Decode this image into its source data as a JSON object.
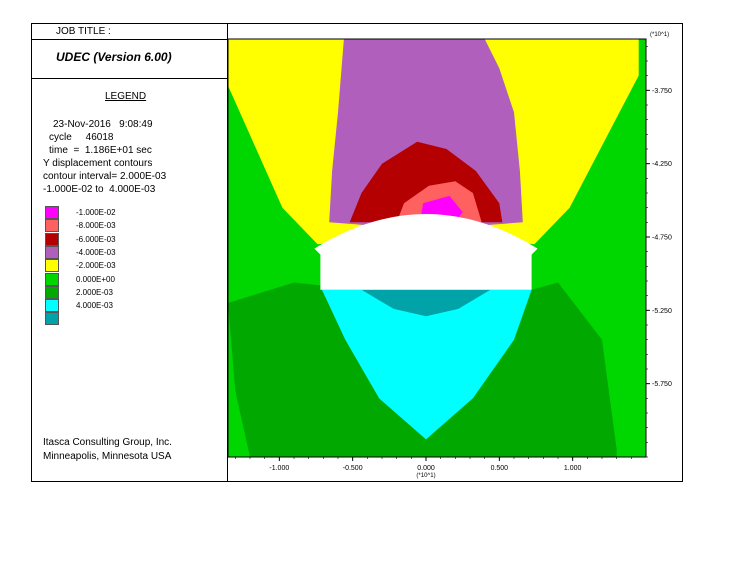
{
  "header": {
    "job_title": "JOB TITLE :",
    "program": "UDEC (Version 6.00)"
  },
  "legend": {
    "title": "LEGEND",
    "date_time": "23-Nov-2016   9:08:49",
    "cycle": "cycle     46018",
    "time": "time  =  1.186E+01 sec",
    "plot_type": "Y displacement contours",
    "interval": "contour interval= 2.000E-03",
    "range": "-1.000E-02 to  4.000E-03",
    "items": [
      {
        "label": "-1.000E-02",
        "color": "#ff00ff"
      },
      {
        "label": "-8.000E-03",
        "color": "#ff6060"
      },
      {
        "label": "-6.000E-03",
        "color": "#b40000"
      },
      {
        "label": "-4.000E-03",
        "color": "#b15fbd"
      },
      {
        "label": "-2.000E-03",
        "color": "#ffff00"
      },
      {
        "label": "0.000E+00",
        "color": "#00d700"
      },
      {
        "label": "2.000E-03",
        "color": "#00a800"
      },
      {
        "label": "4.000E-03",
        "color": "#00ffff"
      },
      {
        "label": "",
        "color": "#00a3a8"
      }
    ]
  },
  "credit": {
    "company": "Itasca Consulting Group, Inc.",
    "location": "Minneapolis, Minnesota  USA"
  },
  "chart_data": {
    "type": "heatmap",
    "title": "Y displacement contours",
    "x_axis": {
      "scale_label": "(*10^1)",
      "range": [
        -1.35,
        1.5
      ],
      "ticks": [
        -1.0,
        -0.5,
        0.0,
        0.5,
        1.0
      ],
      "tick_labels": [
        "-1.000",
        "-0.500",
        "0.000",
        "0.500",
        "1.000"
      ]
    },
    "y_axis": {
      "scale_label": "(*10^1)",
      "range": [
        -6.25,
        -3.4
      ],
      "ticks": [
        -3.75,
        -4.25,
        -4.75,
        -5.25,
        -5.75
      ],
      "tick_labels": [
        "-3.750",
        "-4.250",
        "-4.750",
        "-5.250",
        "-5.750"
      ]
    },
    "contour_interval": 0.002,
    "value_range": [
      -0.01,
      0.004
    ],
    "colors": {
      "yellow": "#ffff00",
      "light_green": "#00d700",
      "dark_green": "#00a800",
      "purple": "#b15fbd",
      "dark_red": "#b40000",
      "salmon": "#ff6060",
      "magenta": "#ff00ff",
      "cyan": "#00ffff",
      "teal": "#00a3a8",
      "excavation": "#ffffff"
    },
    "regions": [
      {
        "name": "yellow",
        "points": [
          [
            -1.35,
            -3.4
          ],
          [
            1.45,
            -3.4
          ],
          [
            1.45,
            -3.65
          ],
          [
            0.98,
            -4.55
          ],
          [
            0.74,
            -4.8
          ],
          [
            0.0,
            -4.72
          ],
          [
            -0.74,
            -4.8
          ],
          [
            -0.98,
            -4.55
          ],
          [
            -1.35,
            -3.72
          ]
        ]
      },
      {
        "name": "light_green",
        "points": [
          [
            -1.35,
            -3.72
          ],
          [
            -0.98,
            -4.55
          ],
          [
            -0.74,
            -4.8
          ],
          [
            -0.71,
            -5.1
          ],
          [
            0.72,
            -5.1
          ],
          [
            0.74,
            -4.8
          ],
          [
            0.98,
            -4.55
          ],
          [
            1.45,
            -3.65
          ],
          [
            1.45,
            -6.25
          ],
          [
            -1.35,
            -6.25
          ]
        ]
      },
      {
        "name": "dark_green",
        "points": [
          [
            -1.35,
            -5.2
          ],
          [
            -0.9,
            -5.06
          ],
          [
            -0.72,
            -5.08
          ],
          [
            -0.72,
            -5.11
          ],
          [
            0.72,
            -5.11
          ],
          [
            0.9,
            -5.06
          ],
          [
            1.2,
            -5.45
          ],
          [
            1.3,
            -6.2
          ],
          [
            1.3,
            -6.25
          ],
          [
            -1.2,
            -6.25
          ],
          [
            -1.3,
            -5.8
          ]
        ]
      },
      {
        "name": "cyan",
        "points": [
          [
            -0.71,
            -5.11
          ],
          [
            0.72,
            -5.11
          ],
          [
            0.6,
            -5.45
          ],
          [
            0.32,
            -5.85
          ],
          [
            0.0,
            -6.13
          ],
          [
            -0.32,
            -5.85
          ],
          [
            -0.55,
            -5.45
          ]
        ]
      },
      {
        "name": "teal",
        "points": [
          [
            -0.44,
            -5.11
          ],
          [
            0.44,
            -5.11
          ],
          [
            0.22,
            -5.24
          ],
          [
            0.0,
            -5.29
          ],
          [
            -0.22,
            -5.24
          ]
        ]
      },
      {
        "name": "purple",
        "points": [
          [
            -0.56,
            -3.4
          ],
          [
            0.4,
            -3.4
          ],
          [
            0.5,
            -3.6
          ],
          [
            0.6,
            -3.9
          ],
          [
            0.64,
            -4.3
          ],
          [
            0.66,
            -4.65
          ],
          [
            0.0,
            -4.7
          ],
          [
            -0.66,
            -4.65
          ],
          [
            -0.64,
            -4.3
          ],
          [
            -0.6,
            -3.9
          ]
        ]
      },
      {
        "name": "dark_red",
        "points": [
          [
            -0.06,
            -4.1
          ],
          [
            0.14,
            -4.15
          ],
          [
            0.34,
            -4.3
          ],
          [
            0.5,
            -4.52
          ],
          [
            0.52,
            -4.65
          ],
          [
            -0.52,
            -4.65
          ],
          [
            -0.44,
            -4.45
          ],
          [
            -0.3,
            -4.25
          ]
        ]
      },
      {
        "name": "salmon",
        "points": [
          [
            -0.15,
            -4.52
          ],
          [
            0.02,
            -4.4
          ],
          [
            0.2,
            -4.37
          ],
          [
            0.32,
            -4.45
          ],
          [
            0.38,
            -4.65
          ],
          [
            -0.2,
            -4.65
          ]
        ]
      },
      {
        "name": "magenta",
        "points": [
          [
            -0.02,
            -4.52
          ],
          [
            0.16,
            -4.47
          ],
          [
            0.25,
            -4.58
          ],
          [
            0.2,
            -4.65
          ],
          [
            -0.04,
            -4.65
          ]
        ]
      }
    ],
    "excavation": {
      "floor_y": -5.11,
      "wall_top_y": -4.87,
      "half_width": 0.72,
      "crown_y": -4.55
    }
  }
}
